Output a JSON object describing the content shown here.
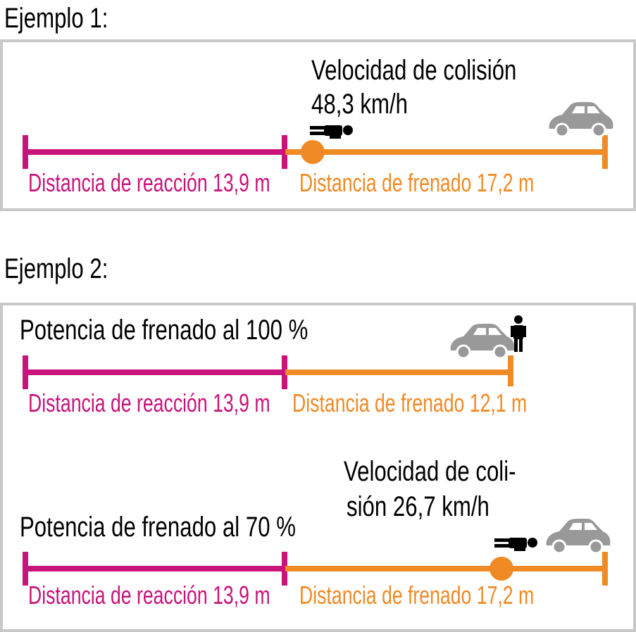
{
  "example1": {
    "heading": "Ejemplo 1:",
    "collision_line1": "Velocidad de colisión",
    "collision_line2": "48,3 km/h",
    "reaction_label": "Distancia de reacción 13,9 m",
    "braking_label": "Distancia de frenado 17,2 m"
  },
  "example2": {
    "heading": "Ejemplo 2:",
    "case100": {
      "title": "Potencia de frenado al 100 %",
      "reaction_label": "Distancia de reacción 13,9 m",
      "braking_label": "Distancia de frenado 12,1 m"
    },
    "case70": {
      "title": "Potencia de frenado al 70 %",
      "collision_line1": "Velocidad de coli-",
      "collision_line2": "sión 26,7 km/h",
      "reaction_label": "Distancia de reacción 13,9 m",
      "braking_label": "Distancia de frenado 17,2 m"
    }
  },
  "colors": {
    "reaction": "#c8137a",
    "braking": "#f08a24",
    "car": "#999999",
    "pedestrian": "#000000",
    "panel_border": "#c8c8c8"
  },
  "icons": [
    "car-icon",
    "pedestrian-standing-icon",
    "pedestrian-lying-icon",
    "impact-point-marker"
  ]
}
